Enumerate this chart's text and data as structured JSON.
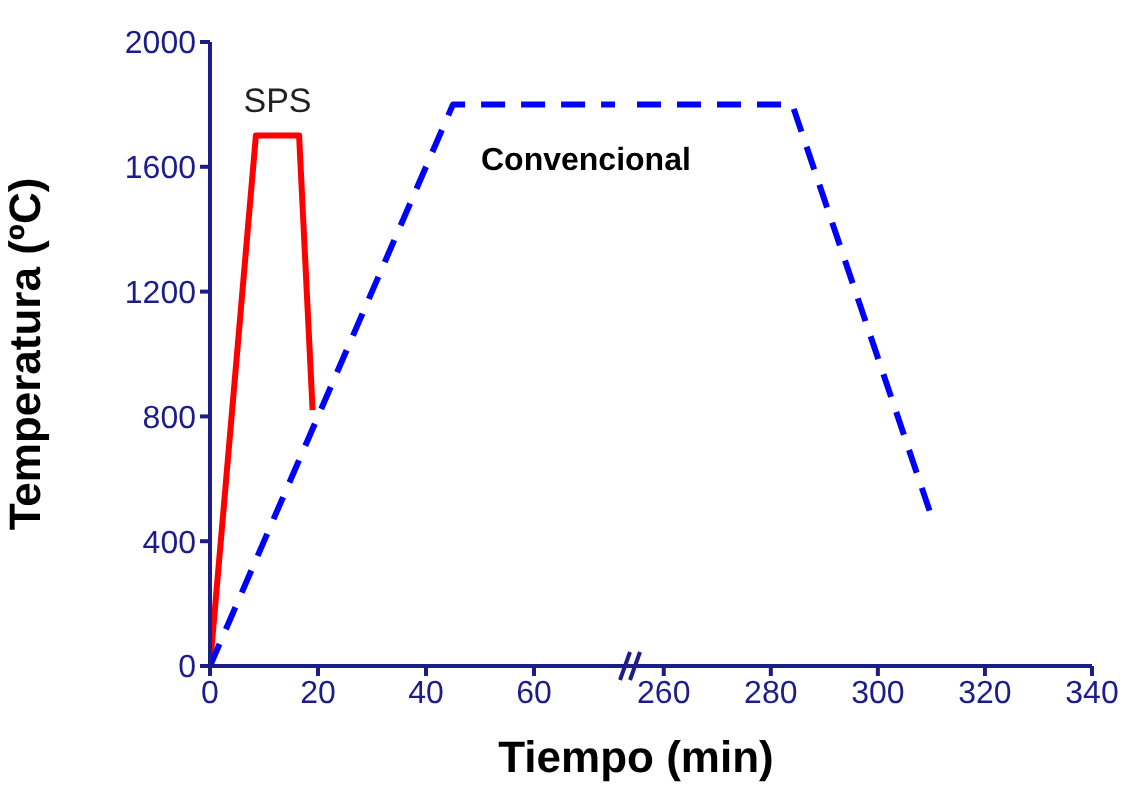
{
  "chart_data": [
    {
      "type": "line",
      "xlabel": "Tiempo (min)",
      "ylabel": "Temperatura (ºC)",
      "xlim": [
        0,
        75
      ],
      "xticks": [
        0,
        20,
        40,
        60
      ],
      "ylim": [
        0,
        2000
      ],
      "yticks": [
        0,
        400,
        800,
        1200,
        1600,
        2000
      ],
      "marker": "none",
      "series": [
        {
          "name": "SPS",
          "color": "#ff0000",
          "line_style": "solid",
          "x": [
            0,
            8.5,
            16.5,
            19
          ],
          "values": [
            0,
            1700,
            1700,
            820
          ]
        },
        {
          "name": "Convencional",
          "color": "#0000ff",
          "line_style": "dashed",
          "x": [
            0,
            45,
            75
          ],
          "values": [
            0,
            1800,
            1800
          ]
        }
      ]
    },
    {
      "type": "line",
      "xlim": [
        255,
        340
      ],
      "xticks": [
        260,
        280,
        300,
        320,
        340
      ],
      "ylim": [
        0,
        2000
      ],
      "tick_labels": "x",
      "marker": "none",
      "series": [
        {
          "color": "#0000ff",
          "line_style": "dashed",
          "x": [
            255,
            284,
            310
          ],
          "values": [
            1800,
            1800,
            480
          ]
        }
      ]
    }
  ]
}
